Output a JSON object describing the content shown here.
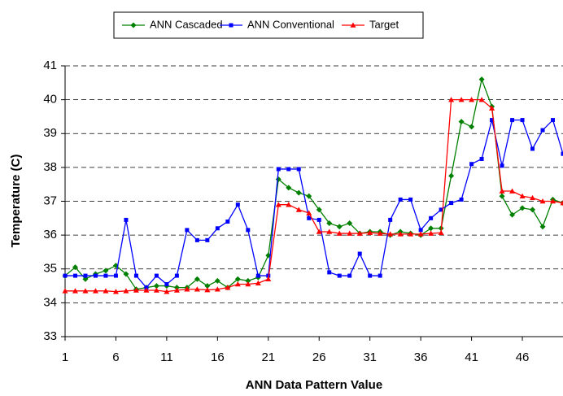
{
  "chart_data": {
    "type": "line",
    "x_label": "ANN Data Pattern Value",
    "y_label": "Temperature (C)",
    "x": [
      1,
      2,
      3,
      4,
      5,
      6,
      7,
      8,
      9,
      10,
      11,
      12,
      13,
      14,
      15,
      16,
      17,
      18,
      19,
      20,
      21,
      22,
      23,
      24,
      25,
      26,
      27,
      28,
      29,
      30,
      31,
      32,
      33,
      34,
      35,
      36,
      37,
      38,
      39,
      40,
      41,
      42,
      43,
      44,
      45,
      46,
      47,
      48,
      49,
      50
    ],
    "series": [
      {
        "name": "ANN Cascaded",
        "color": "#008000",
        "marker": "diamond",
        "values": [
          34.8,
          35.05,
          34.7,
          34.85,
          34.95,
          35.1,
          34.85,
          34.4,
          34.45,
          34.5,
          34.5,
          34.45,
          34.45,
          34.7,
          34.5,
          34.65,
          34.45,
          34.7,
          34.65,
          34.75,
          35.4,
          37.65,
          37.4,
          37.25,
          37.15,
          36.75,
          36.35,
          36.25,
          36.35,
          36.05,
          36.1,
          36.1,
          36.0,
          36.1,
          36.05,
          36.0,
          36.2,
          36.2,
          37.75,
          39.35,
          39.2,
          40.6,
          39.8,
          37.15,
          36.6,
          36.8,
          36.75,
          36.25,
          37.05,
          36.95
        ]
      },
      {
        "name": "ANN Conventional",
        "color": "#0000ff",
        "marker": "square",
        "values": [
          34.8,
          34.8,
          34.8,
          34.8,
          34.8,
          34.8,
          36.45,
          34.8,
          34.45,
          34.8,
          34.55,
          34.8,
          36.15,
          35.85,
          35.85,
          36.2,
          36.4,
          36.9,
          36.15,
          34.8,
          34.8,
          37.95,
          37.95,
          37.95,
          36.5,
          36.45,
          34.9,
          34.8,
          34.8,
          35.45,
          34.8,
          34.8,
          36.45,
          37.05,
          37.05,
          36.15,
          36.5,
          36.75,
          36.95,
          37.05,
          38.1,
          38.25,
          39.4,
          38.05,
          39.4,
          39.4,
          38.55,
          39.1,
          39.4,
          38.4
        ]
      },
      {
        "name": "Target",
        "color": "#ff0000",
        "marker": "triangle",
        "values": [
          34.35,
          34.35,
          34.35,
          34.35,
          34.35,
          34.33,
          34.35,
          34.37,
          34.37,
          34.37,
          34.33,
          34.37,
          34.4,
          34.4,
          34.38,
          34.4,
          34.45,
          34.55,
          34.55,
          34.58,
          34.7,
          36.9,
          36.9,
          36.75,
          36.65,
          36.1,
          36.1,
          36.05,
          36.05,
          36.05,
          36.07,
          36.05,
          36.03,
          36.03,
          36.03,
          36.03,
          36.05,
          36.07,
          40,
          40,
          40,
          40,
          39.75,
          37.3,
          37.3,
          37.15,
          37.1,
          37.0,
          37.0,
          36.95
        ]
      }
    ],
    "xlim": [
      1,
      50
    ],
    "xticks": [
      1,
      6,
      11,
      16,
      21,
      26,
      31,
      36,
      41,
      46
    ],
    "ylim": [
      33,
      41
    ],
    "yticks": [
      33,
      34,
      35,
      36,
      37,
      38,
      39,
      40,
      41
    ],
    "grid": true,
    "legend": "top"
  }
}
